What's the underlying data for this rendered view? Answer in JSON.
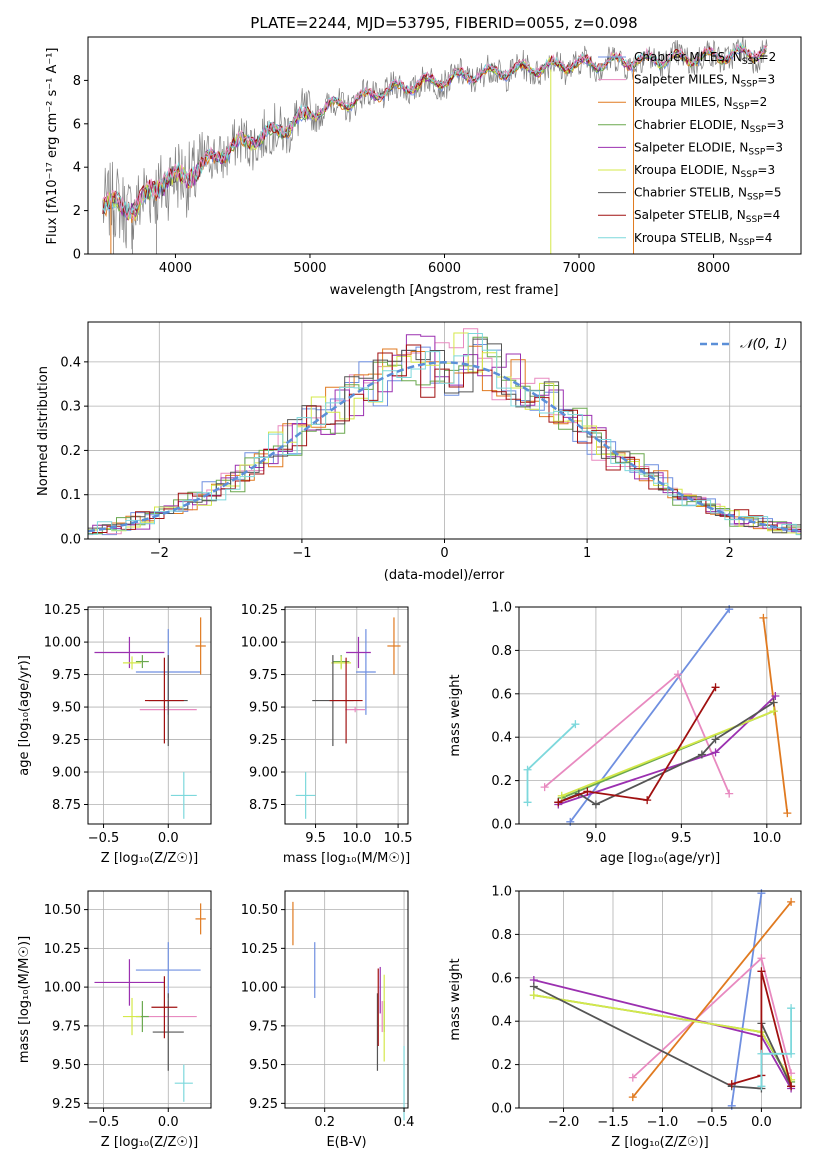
{
  "colors": {
    "Chabrier MILES": "#6f8fe0",
    "Salpeter MILES": "#e88ac0",
    "Kroupa MILES": "#e07a20",
    "Chabrier ELODIE": "#6aa84f",
    "Salpeter ELODIE": "#9b30b0",
    "Kroupa ELODIE": "#d4e84a",
    "Chabrier STELIB": "#555555",
    "Salpeter STELIB": "#a01010",
    "Kroupa STELIB": "#7dd8dc",
    "data": "#808080",
    "gaussian": "#5b8fd8"
  },
  "chart_data": [
    {
      "id": "spectrum",
      "type": "line",
      "title": "PLATE=2244, MJD=53795, FIBERID=0055, z=0.098",
      "xlabel": "wavelength [Angstrom, rest frame]",
      "ylabel": "Flux [fλ10⁻¹⁷ erg cm⁻² s⁻¹ A⁻¹]",
      "xlim": [
        3350,
        8650
      ],
      "ylim": [
        0,
        10
      ],
      "xticks": [
        4000,
        5000,
        6000,
        7000,
        8000
      ],
      "yticks": [
        0,
        2,
        4,
        6,
        8
      ],
      "grid": false,
      "legend_position": "right",
      "series": [
        {
          "name": "Chabrier MILES, N_SSP=2",
          "label": "Chabrier MILES, N",
          "sub": "SSP",
          "tail": "=2"
        },
        {
          "name": "Salpeter MILES, N_SSP=3",
          "label": "Salpeter MILES, N",
          "sub": "SSP",
          "tail": "=3"
        },
        {
          "name": "Kroupa MILES, N_SSP=2",
          "label": "Kroupa MILES, N",
          "sub": "SSP",
          "tail": "=2"
        },
        {
          "name": "Chabrier ELODIE, N_SSP=3",
          "label": "Chabrier ELODIE, N",
          "sub": "SSP",
          "tail": "=3"
        },
        {
          "name": "Salpeter ELODIE, N_SSP=3",
          "label": "Salpeter ELODIE, N",
          "sub": "SSP",
          "tail": "=3"
        },
        {
          "name": "Kroupa ELODIE, N_SSP=3",
          "label": "Kroupa ELODIE, N",
          "sub": "SSP",
          "tail": "=3"
        },
        {
          "name": "Chabrier STELIB, N_SSP=5",
          "label": "Chabrier STELIB, N",
          "sub": "SSP",
          "tail": "=5"
        },
        {
          "name": "Salpeter STELIB, N_SSP=4",
          "label": "Salpeter STELIB, N",
          "sub": "SSP",
          "tail": "=4"
        },
        {
          "name": "Kroupa STELIB, N_SSP=4",
          "label": "Kroupa STELIB, N",
          "sub": "SSP",
          "tail": "=4"
        }
      ],
      "continuum_points": [
        [
          3450,
          2.3
        ],
        [
          3700,
          2.1
        ],
        [
          3900,
          3.3
        ],
        [
          4100,
          3.6
        ],
        [
          4300,
          4.5
        ],
        [
          4500,
          5.1
        ],
        [
          4700,
          5.5
        ],
        [
          4900,
          6.1
        ],
        [
          5100,
          6.7
        ],
        [
          5300,
          7.0
        ],
        [
          5500,
          7.4
        ],
        [
          5800,
          7.8
        ],
        [
          6000,
          8.0
        ],
        [
          6300,
          8.3
        ],
        [
          6600,
          8.5
        ],
        [
          6900,
          8.7
        ],
        [
          7200,
          8.8
        ],
        [
          7500,
          8.9
        ],
        [
          7800,
          9.0
        ],
        [
          8200,
          9.2
        ],
        [
          8400,
          9.3
        ]
      ]
    },
    {
      "id": "residuals",
      "type": "area",
      "xlabel": "(data-model)/error",
      "ylabel": "Normed distribution",
      "xlim": [
        -2.5,
        2.5
      ],
      "ylim": [
        0,
        0.49
      ],
      "xticks": [
        -2,
        -1,
        0,
        1,
        2
      ],
      "yticks": [
        0.0,
        0.1,
        0.2,
        0.3,
        0.4
      ],
      "grid": true,
      "legend_position": "top-right",
      "legend": "𝒩(0, 1)",
      "bin_width": 0.1
    },
    {
      "id": "age_vs_Z",
      "type": "scatter",
      "xlabel": "Z [log₁₀(Z/Z☉)]",
      "ylabel": "age  [log₁₀(age/yr)]",
      "xlim": [
        -0.62,
        0.33
      ],
      "ylim": [
        8.6,
        10.27
      ],
      "xticks": [
        -0.5,
        0.0
      ],
      "yticks": [
        8.75,
        9.0,
        9.25,
        9.5,
        9.75,
        10.0,
        10.25
      ],
      "grid": true,
      "points": [
        {
          "model": "Chabrier MILES",
          "x": 0.0,
          "xerr": 0.25,
          "y": 9.77,
          "yerr": 0.33
        },
        {
          "model": "Salpeter MILES",
          "x": 0.0,
          "xerr": 0.22,
          "y": 9.48,
          "yerr": 0.02
        },
        {
          "model": "Kroupa MILES",
          "x": 0.25,
          "xerr": 0.04,
          "y": 9.97,
          "yerr": 0.22
        },
        {
          "model": "Chabrier ELODIE",
          "x": -0.2,
          "xerr": 0.05,
          "y": 9.85,
          "yerr": 0.05
        },
        {
          "model": "Salpeter ELODIE",
          "x": -0.3,
          "xerr": 0.27,
          "y": 9.92,
          "yerr": 0.12
        },
        {
          "model": "Kroupa ELODIE",
          "x": -0.28,
          "xerr": 0.07,
          "y": 9.84,
          "yerr": 0.05
        },
        {
          "model": "Chabrier STELIB",
          "x": 0.0,
          "xerr": 0.15,
          "y": 9.55,
          "yerr": 0.35
        },
        {
          "model": "Salpeter STELIB",
          "x": -0.03,
          "xerr": 0.15,
          "y": 9.55,
          "yerr": 0.33
        },
        {
          "model": "Kroupa STELIB",
          "x": 0.12,
          "xerr": 0.1,
          "y": 8.82,
          "yerr": 0.18
        }
      ]
    },
    {
      "id": "age_vs_mass",
      "type": "scatter",
      "xlabel": "mass [log₁₀(M/M☉)]",
      "xlim": [
        9.13,
        10.62
      ],
      "ylim": [
        8.6,
        10.27
      ],
      "xticks": [
        9.5,
        10.0,
        10.5
      ],
      "yticks": [
        8.75,
        9.0,
        9.25,
        9.5,
        9.75,
        10.0,
        10.25
      ],
      "grid": true,
      "points": [
        {
          "model": "Chabrier MILES",
          "x": 10.11,
          "xerr": 0.12,
          "y": 9.77,
          "yerr": 0.33
        },
        {
          "model": "Salpeter MILES",
          "x": 9.98,
          "xerr": 0.12,
          "y": 9.48,
          "yerr": 0.02
        },
        {
          "model": "Kroupa MILES",
          "x": 10.45,
          "xerr": 0.08,
          "y": 9.97,
          "yerr": 0.22
        },
        {
          "model": "Chabrier ELODIE",
          "x": 9.81,
          "xerr": 0.1,
          "y": 9.85,
          "yerr": 0.05
        },
        {
          "model": "Salpeter ELODIE",
          "x": 10.02,
          "xerr": 0.15,
          "y": 9.92,
          "yerr": 0.12
        },
        {
          "model": "Kroupa ELODIE",
          "x": 9.81,
          "xerr": 0.12,
          "y": 9.84,
          "yerr": 0.05
        },
        {
          "model": "Chabrier STELIB",
          "x": 9.71,
          "xerr": 0.25,
          "y": 9.55,
          "yerr": 0.35
        },
        {
          "model": "Salpeter STELIB",
          "x": 9.87,
          "xerr": 0.2,
          "y": 9.55,
          "yerr": 0.33
        },
        {
          "model": "Kroupa STELIB",
          "x": 9.38,
          "xerr": 0.12,
          "y": 8.82,
          "yerr": 0.18
        }
      ]
    },
    {
      "id": "weight_vs_age",
      "type": "line",
      "xlabel": "age  [log₁₀(age/yr)]",
      "ylabel": "mass weight",
      "xlim": [
        8.55,
        10.2
      ],
      "ylim": [
        0,
        1
      ],
      "xticks": [
        9.0,
        9.5,
        10.0
      ],
      "yticks": [
        0.0,
        0.2,
        0.4,
        0.6,
        0.8,
        1.0
      ],
      "grid": true,
      "series": [
        {
          "model": "Chabrier MILES",
          "points": [
            [
              8.85,
              0.01
            ],
            [
              9.78,
              0.99
            ]
          ]
        },
        {
          "model": "Salpeter MILES",
          "points": [
            [
              8.7,
              0.17
            ],
            [
              9.48,
              0.69
            ],
            [
              9.78,
              0.14
            ]
          ]
        },
        {
          "model": "Kroupa MILES",
          "points": [
            [
              9.98,
              0.95
            ],
            [
              10.12,
              0.05
            ]
          ]
        },
        {
          "model": "Chabrier ELODIE",
          "points": [
            [
              8.8,
              0.12
            ],
            [
              10.04,
              0.52
            ]
          ]
        },
        {
          "model": "Salpeter ELODIE",
          "points": [
            [
              8.78,
              0.09
            ],
            [
              9.7,
              0.33
            ],
            [
              10.05,
              0.59
            ]
          ]
        },
        {
          "model": "Kroupa ELODIE",
          "points": [
            [
              8.8,
              0.13
            ],
            [
              10.04,
              0.52
            ]
          ]
        },
        {
          "model": "Chabrier STELIB",
          "points": [
            [
              8.78,
              0.1
            ],
            [
              8.9,
              0.14
            ],
            [
              9.0,
              0.09
            ],
            [
              9.62,
              0.32
            ],
            [
              9.7,
              0.39
            ],
            [
              10.04,
              0.56
            ]
          ]
        },
        {
          "model": "Salpeter STELIB",
          "points": [
            [
              8.78,
              0.1
            ],
            [
              8.95,
              0.15
            ],
            [
              9.3,
              0.11
            ],
            [
              9.7,
              0.63
            ]
          ]
        },
        {
          "model": "Kroupa STELIB",
          "points": [
            [
              8.6,
              0.1
            ],
            [
              8.6,
              0.25
            ],
            [
              8.88,
              0.46
            ]
          ]
        }
      ]
    },
    {
      "id": "mass_vs_Z",
      "type": "scatter",
      "xlabel": "Z [log₁₀(Z/Z☉)]",
      "ylabel": "mass [log₁₀(M/M☉)]",
      "xlim": [
        -0.62,
        0.33
      ],
      "ylim": [
        9.22,
        10.62
      ],
      "xticks": [
        -0.5,
        0.0
      ],
      "yticks": [
        9.25,
        9.5,
        9.75,
        10.0,
        10.25,
        10.5
      ],
      "grid": true,
      "points": [
        {
          "model": "Chabrier MILES",
          "x": 0.0,
          "xerr": 0.25,
          "y": 10.11,
          "yerr": 0.18
        },
        {
          "model": "Salpeter MILES",
          "x": 0.0,
          "xerr": 0.22,
          "y": 9.81,
          "yerr": 0.1
        },
        {
          "model": "Kroupa MILES",
          "x": 0.25,
          "xerr": 0.04,
          "y": 10.44,
          "yerr": 0.1
        },
        {
          "model": "Chabrier ELODIE",
          "x": -0.2,
          "xerr": 0.05,
          "y": 9.81,
          "yerr": 0.1
        },
        {
          "model": "Salpeter ELODIE",
          "x": -0.3,
          "xerr": 0.27,
          "y": 10.03,
          "yerr": 0.15
        },
        {
          "model": "Kroupa ELODIE",
          "x": -0.28,
          "xerr": 0.07,
          "y": 9.81,
          "yerr": 0.12
        },
        {
          "model": "Chabrier STELIB",
          "x": 0.0,
          "xerr": 0.12,
          "y": 9.71,
          "yerr": 0.25
        },
        {
          "model": "Salpeter STELIB",
          "x": -0.03,
          "xerr": 0.1,
          "y": 9.87,
          "yerr": 0.2
        },
        {
          "model": "Kroupa STELIB",
          "x": 0.12,
          "xerr": 0.07,
          "y": 9.38,
          "yerr": 0.12
        }
      ]
    },
    {
      "id": "mass_vs_ebv",
      "type": "scatter",
      "xlabel": "E(B-V)",
      "xlim": [
        0.1,
        0.41
      ],
      "ylim": [
        9.22,
        10.62
      ],
      "xticks": [
        0.2,
        0.4
      ],
      "yticks": [
        9.25,
        9.5,
        9.75,
        10.0,
        10.25,
        10.5
      ],
      "grid": true,
      "points": [
        {
          "model": "Chabrier MILES",
          "x": 0.175,
          "y": 10.11,
          "yerr": 0.18
        },
        {
          "model": "Salpeter MILES",
          "x": 0.345,
          "y": 9.81,
          "yerr": 0.1
        },
        {
          "model": "Kroupa MILES",
          "x": 0.12,
          "y": 10.41,
          "yerr": 0.14
        },
        {
          "model": "Chabrier ELODIE",
          "x": 0.35,
          "y": 9.81,
          "yerr": 0.1
        },
        {
          "model": "Salpeter ELODIE",
          "x": 0.34,
          "y": 9.98,
          "yerr": 0.15
        },
        {
          "model": "Kroupa ELODIE",
          "x": 0.35,
          "y": 9.8,
          "yerr": 0.28
        },
        {
          "model": "Chabrier STELIB",
          "x": 0.333,
          "y": 9.71,
          "yerr": 0.25
        },
        {
          "model": "Salpeter STELIB",
          "x": 0.335,
          "y": 9.87,
          "yerr": 0.25
        },
        {
          "model": "Kroupa STELIB",
          "x": 0.4,
          "y": 9.38,
          "yerr": 0.24
        }
      ]
    },
    {
      "id": "weight_vs_Z",
      "type": "line",
      "xlabel": "Z [log₁₀(Z/Z☉)]",
      "ylabel": "mass weight",
      "xlim": [
        -2.45,
        0.4
      ],
      "ylim": [
        0,
        1
      ],
      "xticks": [
        -2.0,
        -1.5,
        -1.0,
        -0.5,
        0.0
      ],
      "yticks": [
        0.0,
        0.2,
        0.4,
        0.6,
        0.8,
        1.0
      ],
      "grid": true,
      "series": [
        {
          "model": "Chabrier MILES",
          "points": [
            [
              -0.3,
              0.01
            ],
            [
              0.0,
              0.99
            ]
          ]
        },
        {
          "model": "Salpeter MILES",
          "points": [
            [
              -1.3,
              0.14
            ],
            [
              0.0,
              0.69
            ],
            [
              0.3,
              0.16
            ]
          ]
        },
        {
          "model": "Kroupa MILES",
          "points": [
            [
              -1.3,
              0.05
            ],
            [
              0.3,
              0.95
            ]
          ]
        },
        {
          "model": "Chabrier ELODIE",
          "points": [
            [
              -2.3,
              0.52
            ],
            [
              0.0,
              0.35
            ],
            [
              0.3,
              0.12
            ]
          ]
        },
        {
          "model": "Salpeter ELODIE",
          "points": [
            [
              -2.3,
              0.59
            ],
            [
              0.0,
              0.33
            ],
            [
              0.3,
              0.09
            ]
          ]
        },
        {
          "model": "Kroupa ELODIE",
          "points": [
            [
              -2.3,
              0.52
            ],
            [
              0.0,
              0.35
            ],
            [
              0.3,
              0.13
            ]
          ]
        },
        {
          "model": "Chabrier STELIB",
          "points": [
            [
              -2.3,
              0.56
            ],
            [
              -0.3,
              0.1
            ],
            [
              0.0,
              0.09
            ],
            [
              0.0,
              0.39
            ],
            [
              0.3,
              0.1
            ]
          ]
        },
        {
          "model": "Salpeter STELIB",
          "points": [
            [
              -0.3,
              0.11
            ],
            [
              0.0,
              0.15
            ],
            [
              0.0,
              0.63
            ],
            [
              0.3,
              0.1
            ]
          ]
        },
        {
          "model": "Kroupa STELIB",
          "points": [
            [
              0.0,
              0.1
            ],
            [
              0.0,
              0.25
            ],
            [
              0.3,
              0.25
            ],
            [
              0.3,
              0.46
            ]
          ]
        }
      ]
    }
  ]
}
